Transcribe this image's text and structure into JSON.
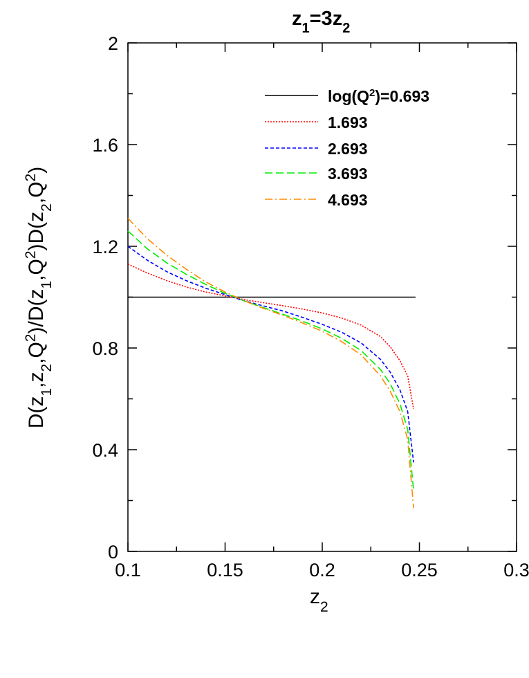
{
  "chart_data": {
    "type": "line",
    "title": "z1=3z2",
    "xlabel": "z2",
    "ylabel": "D(z1,z2,Q2)/D(z1,Q2)D(z2,Q2)",
    "xlim": [
      0.1,
      0.3
    ],
    "ylim": [
      0,
      2
    ],
    "x_ticks": [
      "0.1",
      "0.15",
      "0.2",
      "0.25",
      "0.3"
    ],
    "y_ticks": [
      "0",
      "0.4",
      "0.8",
      "1.2",
      "1.6",
      "2"
    ],
    "grid": false,
    "legend_position": "top-right",
    "legend_title": "log(Q²)=",
    "series": [
      {
        "name": "0.693",
        "color": "#000000",
        "dash": "solid",
        "x": [
          0.1,
          0.125,
          0.15,
          0.175,
          0.2,
          0.225,
          0.248
        ],
        "y": [
          1.0,
          1.0,
          1.0,
          1.0,
          1.0,
          1.0,
          1.0
        ]
      },
      {
        "name": "1.693",
        "color": "#ff0000",
        "dash": "dotted",
        "x": [
          0.1,
          0.11,
          0.12,
          0.13,
          0.14,
          0.15,
          0.16,
          0.17,
          0.18,
          0.19,
          0.2,
          0.21,
          0.22,
          0.23,
          0.235,
          0.24,
          0.244,
          0.247
        ],
        "y": [
          1.13,
          1.095,
          1.065,
          1.04,
          1.02,
          1.005,
          0.99,
          0.978,
          0.966,
          0.953,
          0.938,
          0.918,
          0.89,
          0.845,
          0.805,
          0.75,
          0.69,
          0.56
        ]
      },
      {
        "name": "2.693",
        "color": "#0000ff",
        "dash": "short-dash",
        "x": [
          0.1,
          0.11,
          0.12,
          0.13,
          0.14,
          0.15,
          0.16,
          0.17,
          0.18,
          0.19,
          0.2,
          0.21,
          0.22,
          0.23,
          0.235,
          0.24,
          0.244,
          0.247
        ],
        "y": [
          1.2,
          1.145,
          1.1,
          1.065,
          1.035,
          1.01,
          0.985,
          0.965,
          0.945,
          0.92,
          0.893,
          0.862,
          0.82,
          0.755,
          0.705,
          0.635,
          0.55,
          0.35
        ]
      },
      {
        "name": "3.693",
        "color": "#00ee00",
        "dash": "long-dash",
        "x": [
          0.1,
          0.11,
          0.12,
          0.13,
          0.14,
          0.15,
          0.16,
          0.17,
          0.18,
          0.19,
          0.2,
          0.21,
          0.22,
          0.23,
          0.235,
          0.24,
          0.244,
          0.247
        ],
        "y": [
          1.26,
          1.19,
          1.135,
          1.09,
          1.05,
          1.015,
          0.985,
          0.958,
          0.932,
          0.905,
          0.875,
          0.838,
          0.79,
          0.715,
          0.66,
          0.58,
          0.48,
          0.24
        ]
      },
      {
        "name": "4.693",
        "color": "#ff8c00",
        "dash": "dash-dot",
        "x": [
          0.1,
          0.11,
          0.12,
          0.13,
          0.14,
          0.15,
          0.16,
          0.17,
          0.18,
          0.19,
          0.2,
          0.21,
          0.22,
          0.23,
          0.235,
          0.24,
          0.244,
          0.247
        ],
        "y": [
          1.31,
          1.23,
          1.165,
          1.11,
          1.06,
          1.02,
          0.985,
          0.955,
          0.928,
          0.898,
          0.866,
          0.825,
          0.773,
          0.69,
          0.63,
          0.55,
          0.44,
          0.17
        ]
      }
    ]
  }
}
